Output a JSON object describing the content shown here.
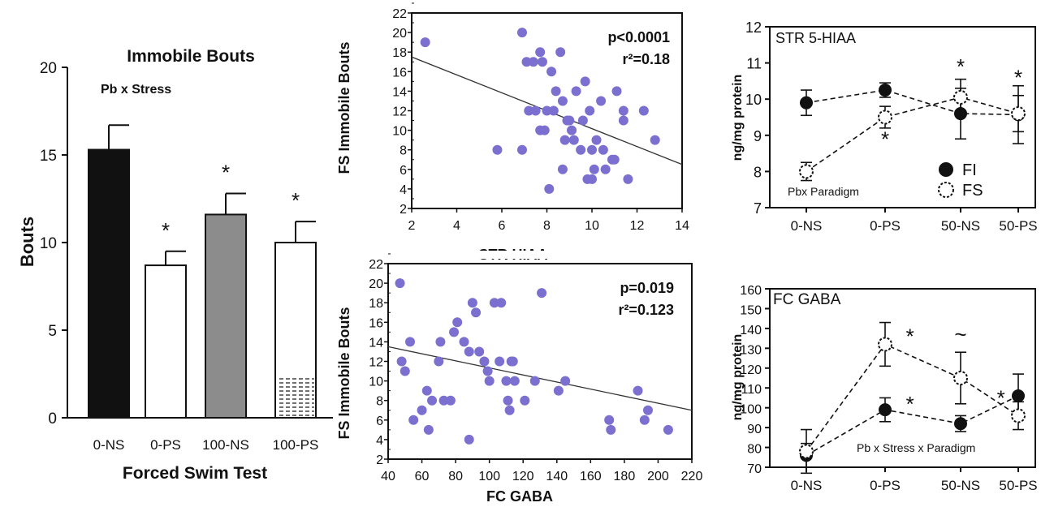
{
  "colors": {
    "dot": "#7b6fd0",
    "black": "#111111",
    "gray": "#8c8c8c",
    "white": "#ffffff"
  },
  "chart_data": [
    {
      "id": "bar",
      "type": "bar",
      "title": "Immobile Bouts",
      "subtitle": "Pb x Stress",
      "xlabel": "Forced Swim Test",
      "ylabel": "Bouts",
      "ylim": [
        0,
        20
      ],
      "yticks": [
        "0",
        "5",
        "10",
        "15",
        "20"
      ],
      "categories": [
        "0-NS",
        "0-PS",
        "100-NS",
        "100-PS"
      ],
      "values": [
        15.3,
        8.7,
        11.6,
        10.0
      ],
      "errors": [
        1.4,
        0.8,
        1.2,
        1.2
      ],
      "fills": [
        "black",
        "white",
        "gray",
        "white-hatched"
      ],
      "significance": [
        "",
        "*",
        "*",
        "*"
      ],
      "hatch_top": 2.4
    },
    {
      "id": "sc1",
      "type": "scatter",
      "xlabel": "STR HIAA",
      "ylabel": "FS Immobile Bouts",
      "xlim": [
        2,
        14
      ],
      "ylim": [
        2,
        22
      ],
      "xticks": [
        "2",
        "4",
        "6",
        "8",
        "10",
        "12",
        "14"
      ],
      "yticks": [
        "2",
        "4",
        "6",
        "8",
        "10",
        "12",
        "14",
        "16",
        "18",
        "20",
        "22"
      ],
      "stat_p": "p<0.0001",
      "stat_r": "r²=0.18",
      "line": {
        "x": [
          2,
          14
        ],
        "y": [
          17.5,
          6.5
        ]
      },
      "points": [
        [
          2.6,
          19
        ],
        [
          5.8,
          8
        ],
        [
          6.9,
          20
        ],
        [
          6.9,
          8
        ],
        [
          7.1,
          17
        ],
        [
          7.2,
          12
        ],
        [
          7.4,
          17
        ],
        [
          7.5,
          12
        ],
        [
          7.7,
          18
        ],
        [
          7.7,
          10
        ],
        [
          7.8,
          17
        ],
        [
          7.9,
          10
        ],
        [
          8.0,
          12
        ],
        [
          8.1,
          4
        ],
        [
          8.2,
          16
        ],
        [
          8.3,
          12
        ],
        [
          8.4,
          14
        ],
        [
          8.6,
          18
        ],
        [
          8.7,
          13
        ],
        [
          8.8,
          9
        ],
        [
          8.7,
          6
        ],
        [
          9.0,
          11
        ],
        [
          9.1,
          10
        ],
        [
          8.9,
          11
        ],
        [
          9.2,
          9
        ],
        [
          9.3,
          14
        ],
        [
          9.5,
          8
        ],
        [
          9.6,
          11
        ],
        [
          9.7,
          15
        ],
        [
          9.9,
          12
        ],
        [
          9.8,
          5
        ],
        [
          10.0,
          8
        ],
        [
          10.1,
          6
        ],
        [
          10.2,
          9
        ],
        [
          10.0,
          5
        ],
        [
          10.4,
          13
        ],
        [
          10.5,
          8
        ],
        [
          10.6,
          6
        ],
        [
          10.9,
          7
        ],
        [
          11.0,
          7
        ],
        [
          11.1,
          14
        ],
        [
          11.4,
          12
        ],
        [
          11.4,
          11
        ],
        [
          11.6,
          5
        ],
        [
          12.3,
          12
        ],
        [
          12.8,
          9
        ]
      ]
    },
    {
      "id": "sc2",
      "type": "scatter",
      "xlabel": "FC GABA",
      "ylabel": "FS Immobile Bouts",
      "xlim": [
        40,
        220
      ],
      "ylim": [
        2,
        22
      ],
      "xticks": [
        "40",
        "60",
        "80",
        "100",
        "120",
        "140",
        "160",
        "180",
        "200",
        "220"
      ],
      "yticks": [
        "2",
        "4",
        "6",
        "8",
        "10",
        "12",
        "14",
        "16",
        "18",
        "20",
        "22"
      ],
      "stat_p": "p=0.019",
      "stat_r": "r²=0.123",
      "line": {
        "x": [
          40,
          220
        ],
        "y": [
          13.5,
          7.0
        ]
      },
      "points": [
        [
          47,
          20
        ],
        [
          48,
          12
        ],
        [
          50,
          11
        ],
        [
          53,
          14
        ],
        [
          55,
          6
        ],
        [
          60,
          7
        ],
        [
          63,
          9
        ],
        [
          64,
          5
        ],
        [
          66,
          8
        ],
        [
          70,
          12
        ],
        [
          71,
          14
        ],
        [
          73,
          8
        ],
        [
          77,
          8
        ],
        [
          79,
          15
        ],
        [
          81,
          16
        ],
        [
          85,
          14
        ],
        [
          88,
          13
        ],
        [
          88,
          4
        ],
        [
          90,
          18
        ],
        [
          92,
          17
        ],
        [
          94,
          13
        ],
        [
          97,
          12
        ],
        [
          99,
          11
        ],
        [
          100,
          10
        ],
        [
          103,
          18
        ],
        [
          106,
          12
        ],
        [
          107,
          18
        ],
        [
          110,
          10
        ],
        [
          111,
          8
        ],
        [
          112,
          7
        ],
        [
          113,
          12
        ],
        [
          114,
          12
        ],
        [
          115,
          10
        ],
        [
          121,
          8
        ],
        [
          127,
          10
        ],
        [
          131,
          19
        ],
        [
          141,
          9
        ],
        [
          145,
          10
        ],
        [
          171,
          6
        ],
        [
          172,
          5
        ],
        [
          188,
          9
        ],
        [
          192,
          6
        ],
        [
          194,
          7
        ],
        [
          206,
          5
        ]
      ]
    },
    {
      "id": "ln1",
      "type": "line",
      "title": "STR 5-HIAA",
      "ylabel": "ng/mg protein",
      "ylim": [
        7,
        12
      ],
      "yticks": [
        "7",
        "8",
        "9",
        "10",
        "11",
        "12"
      ],
      "categories": [
        "0-NS",
        "0-PS",
        "50-NS",
        "50-PS"
      ],
      "legend": [
        "FI",
        "FS"
      ],
      "note": "Pbx Paradigm",
      "series": [
        {
          "name": "FI",
          "style": "filled",
          "values": [
            9.9,
            10.25,
            9.6,
            9.57
          ],
          "errors": [
            0.35,
            0.2,
            0.7,
            0.8
          ]
        },
        {
          "name": "FS",
          "style": "open",
          "values": [
            8.0,
            9.5,
            10.05,
            9.6
          ],
          "errors": [
            0.25,
            0.3,
            0.5,
            0.5
          ]
        }
      ],
      "significance": [
        {
          "cat": 2,
          "y": 10.9,
          "text": "*"
        },
        {
          "cat": 3,
          "y": 10.6,
          "text": "*"
        },
        {
          "cat": 1,
          "y": 8.9,
          "text": "*"
        }
      ]
    },
    {
      "id": "ln2",
      "type": "line",
      "title": "FC GABA",
      "ylabel": "ng/mg protein",
      "ylim": [
        70,
        160
      ],
      "yticks": [
        "70",
        "80",
        "90",
        "100",
        "110",
        "120",
        "130",
        "140",
        "150",
        "160"
      ],
      "categories": [
        "0-NS",
        "0-PS",
        "50-NS",
        "50-PS"
      ],
      "note": "Pb x Stress x Paradigm",
      "series": [
        {
          "name": "FI",
          "style": "filled",
          "values": [
            76,
            99,
            92,
            106
          ],
          "errors": [
            6,
            6,
            4,
            11
          ]
        },
        {
          "name": "FS",
          "style": "open",
          "values": [
            78,
            132,
            115,
            96
          ],
          "errors": [
            11,
            11,
            13,
            7
          ]
        }
      ],
      "significance": [
        {
          "cat": 1.33,
          "y": 136,
          "text": "*"
        },
        {
          "cat": 1.33,
          "y": 102,
          "text": "*"
        },
        {
          "cat": 2,
          "y": 137,
          "text": "~"
        },
        {
          "cat": 2.7,
          "y": 105,
          "text": "*"
        }
      ]
    }
  ]
}
